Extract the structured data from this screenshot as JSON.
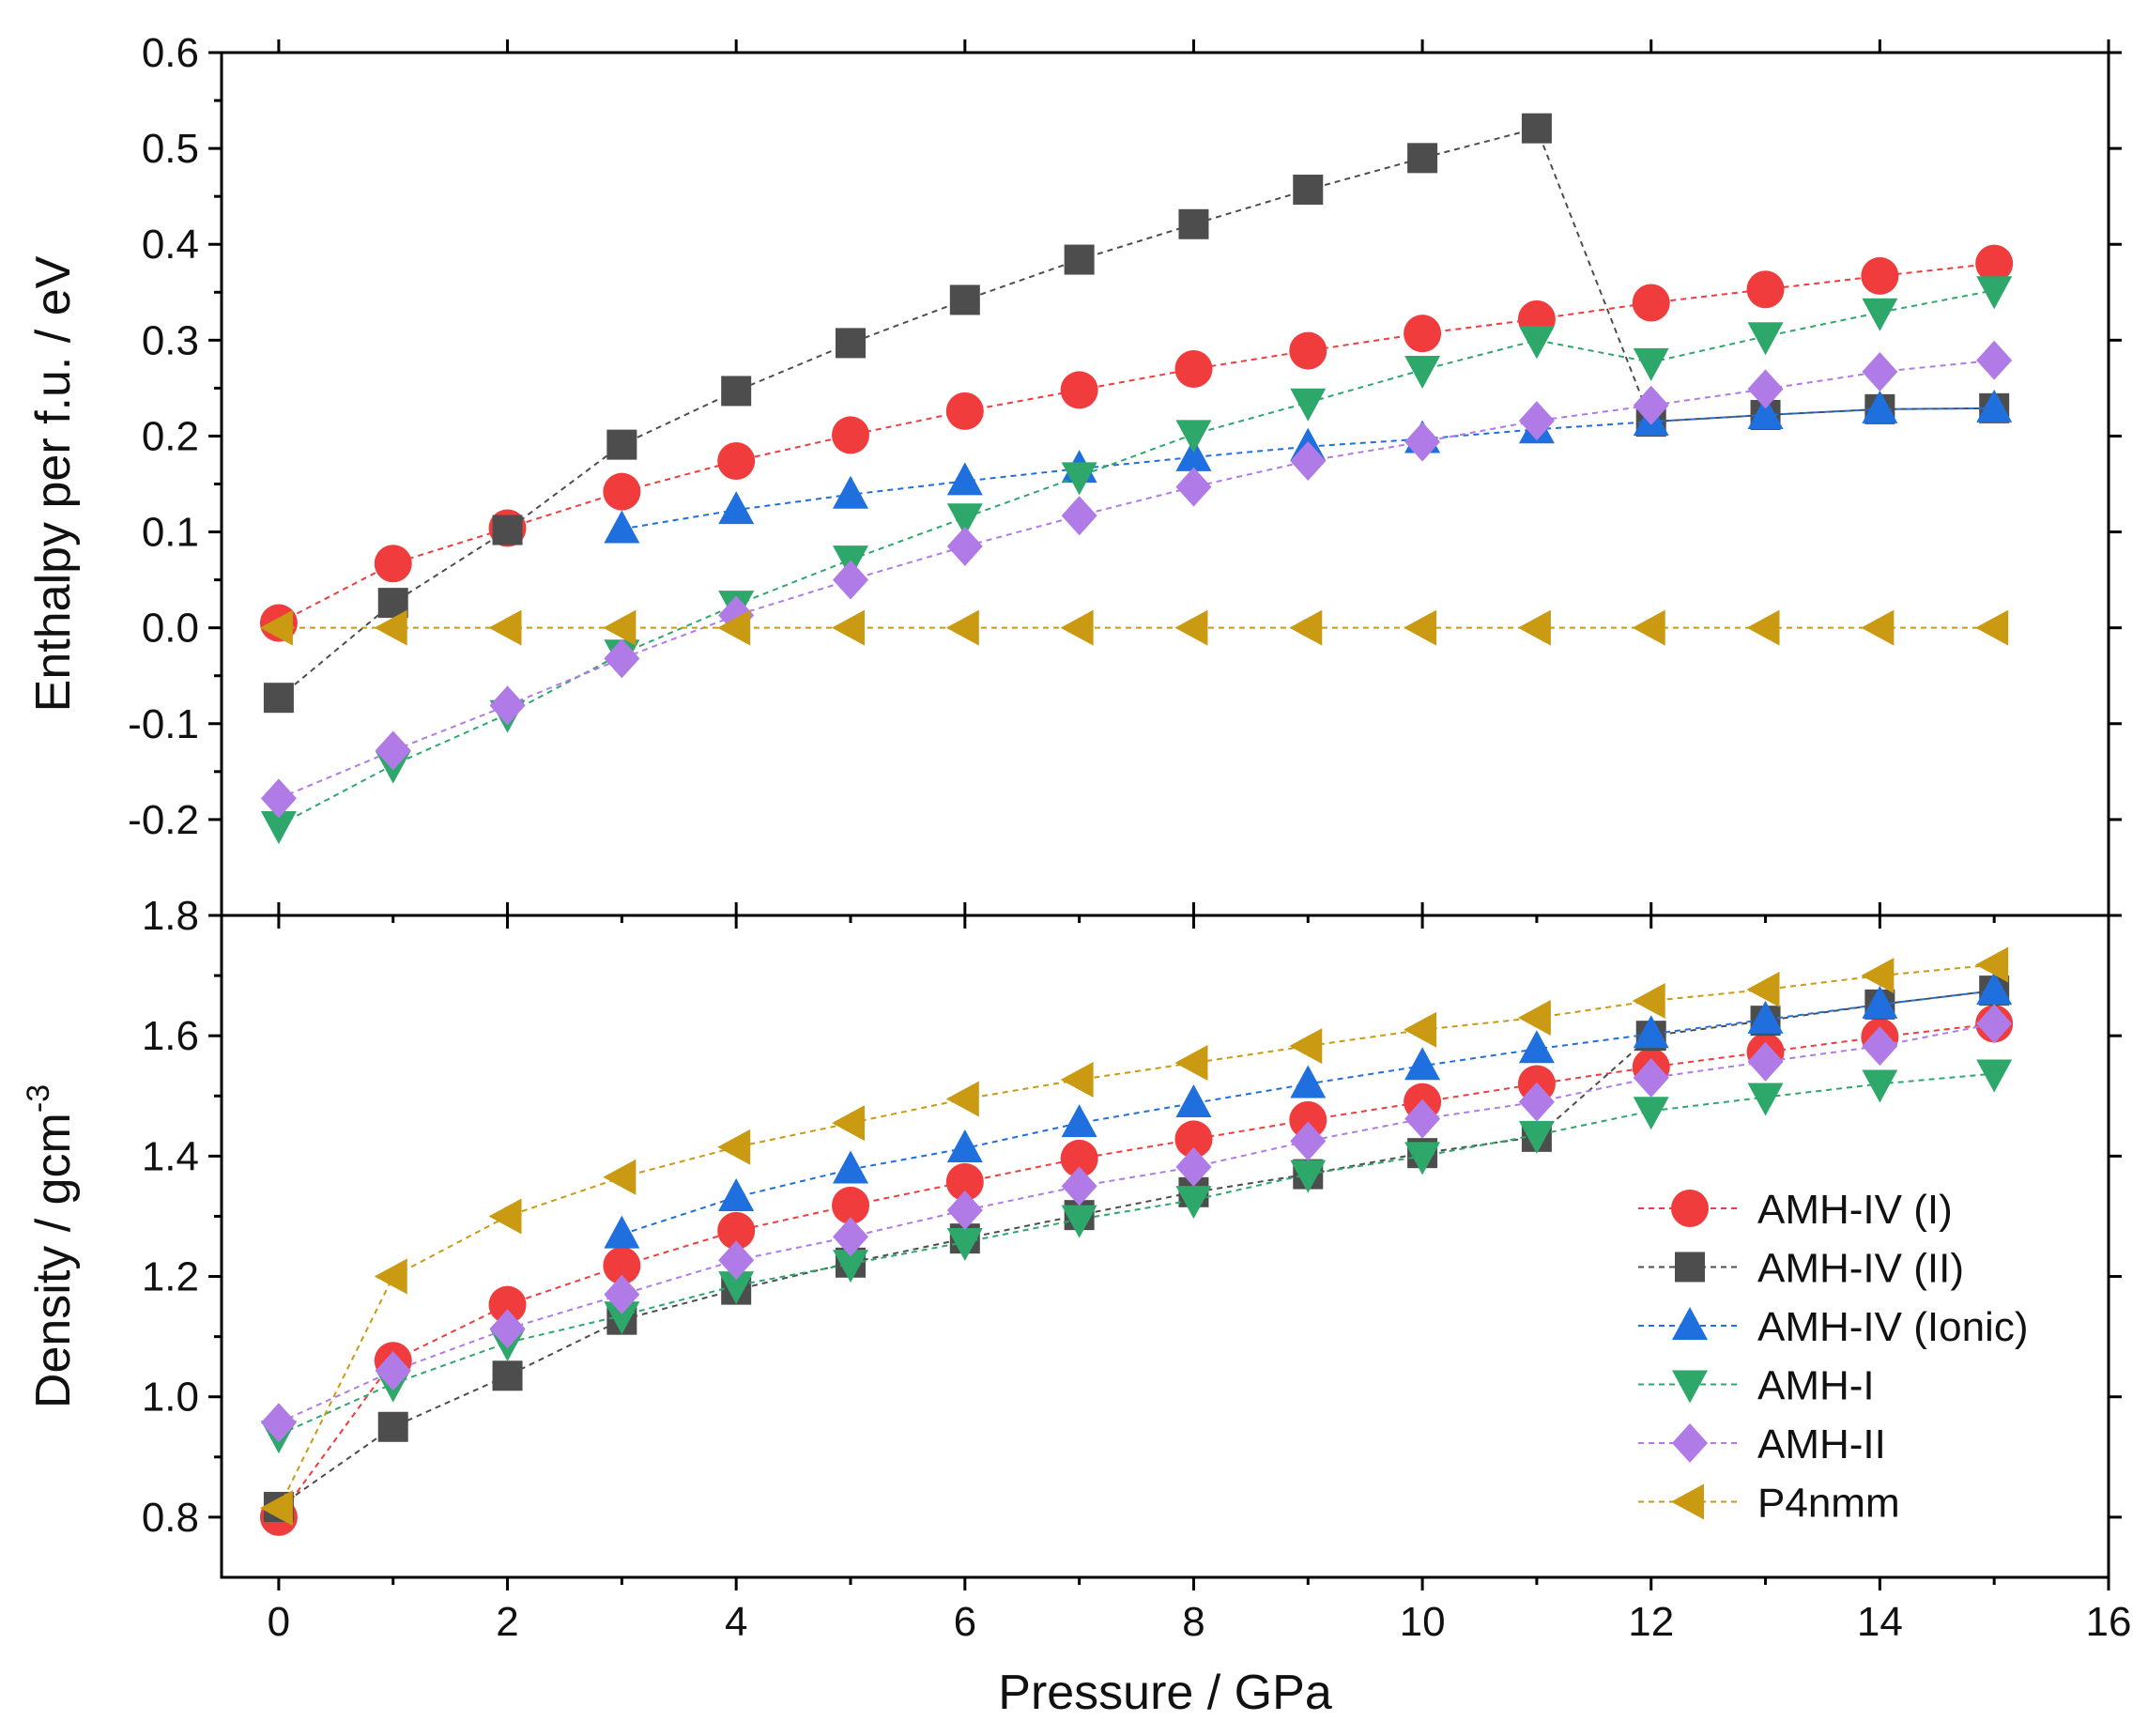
{
  "chart_data": {
    "type": "line",
    "layout": "two vertically stacked panels sharing the x axis",
    "x": [
      0,
      1,
      2,
      3,
      4,
      5,
      6,
      7,
      8,
      9,
      10,
      11,
      12,
      13,
      14,
      15
    ],
    "xlabel": "Pressure / GPa",
    "xlim": [
      -0.5,
      16
    ],
    "xticks": [
      0,
      2,
      4,
      6,
      8,
      10,
      12,
      14,
      16
    ],
    "xtick_labels": [
      "0",
      "2",
      "4",
      "6",
      "8",
      "10",
      "12",
      "14",
      "16"
    ],
    "series_styles": [
      {
        "name": "AMH-IV (I)",
        "color": "#f03c3c",
        "marker": "circle"
      },
      {
        "name": "AMH-IV (II)",
        "color": "#4d4d4d",
        "marker": "square"
      },
      {
        "name": "AMH-IV (Ionic)",
        "color": "#1f6fde",
        "marker": "triangle-up"
      },
      {
        "name": "AMH-I",
        "color": "#2ea86a",
        "marker": "triangle-down"
      },
      {
        "name": "AMH-II",
        "color": "#b07be6",
        "marker": "diamond"
      },
      {
        "name": "P4nmm",
        "color": "#c99a12",
        "marker": "triangle-left"
      }
    ],
    "legend": {
      "placement": "bottom-right of lower panel",
      "entries": [
        "AMH-IV (I)",
        "AMH-IV (II)",
        "AMH-IV (Ionic)",
        "AMH-I",
        "AMH-II",
        "P4nmm"
      ]
    },
    "panels": [
      {
        "name": "enthalpy",
        "ylabel": "Enthalpy per f.u. / eV",
        "ylim": [
          -0.3,
          0.6
        ],
        "yticks": [
          -0.2,
          -0.1,
          0.0,
          0.1,
          0.2,
          0.3,
          0.4,
          0.5,
          0.6
        ],
        "ytick_labels": [
          "-0.2",
          "-0.1",
          "0.0",
          "0.1",
          "0.2",
          "0.3",
          "0.4",
          "0.5",
          "0.6"
        ],
        "series": [
          {
            "name": "AMH-IV (I)",
            "values": [
              0.005,
              0.067,
              0.104,
              0.142,
              0.174,
              0.201,
              0.226,
              0.248,
              0.27,
              0.289,
              0.307,
              0.322,
              0.339,
              0.353,
              0.367,
              0.38
            ]
          },
          {
            "name": "AMH-IV (II)",
            "values": [
              -0.073,
              0.026,
              0.102,
              0.191,
              0.247,
              0.297,
              0.342,
              0.384,
              0.421,
              0.457,
              0.49,
              0.521,
              0.215,
              0.222,
              0.228,
              0.229
            ]
          },
          {
            "name": "AMH-IV (Ionic)",
            "values": [
              null,
              null,
              null,
              0.103,
              0.123,
              0.139,
              0.153,
              0.166,
              0.178,
              0.189,
              0.197,
              0.207,
              0.215,
              0.222,
              0.228,
              0.229
            ]
          },
          {
            "name": "AMH-I",
            "values": [
              -0.206,
              -0.143,
              -0.09,
              -0.027,
              0.024,
              0.071,
              0.115,
              0.158,
              0.202,
              0.235,
              0.269,
              0.3,
              0.277,
              0.304,
              0.329,
              0.352
            ]
          },
          {
            "name": "AMH-II",
            "values": [
              -0.178,
              -0.128,
              -0.081,
              -0.032,
              0.013,
              0.05,
              0.085,
              0.117,
              0.147,
              0.174,
              0.194,
              0.216,
              0.232,
              0.249,
              0.267,
              0.279
            ]
          },
          {
            "name": "P4nmm",
            "values": [
              0,
              0,
              0,
              0,
              0,
              0,
              0,
              0,
              0,
              0,
              0,
              0,
              0,
              0,
              0,
              0
            ]
          }
        ]
      },
      {
        "name": "density",
        "ylabel": "Density / gcm",
        "ylabel_superscript": "-3",
        "ylim": [
          0.7,
          1.8
        ],
        "yticks": [
          0.8,
          1.0,
          1.2,
          1.4,
          1.6,
          1.8
        ],
        "ytick_labels": [
          "0.8",
          "1.0",
          "1.2",
          "1.4",
          "1.6",
          "1.8"
        ],
        "series": [
          {
            "name": "AMH-IV (I)",
            "values": [
              0.8,
              1.06,
              1.153,
              1.218,
              1.276,
              1.318,
              1.357,
              1.396,
              1.428,
              1.46,
              1.49,
              1.52,
              1.548,
              1.573,
              1.598,
              1.62
            ]
          },
          {
            "name": "AMH-IV (II)",
            "values": [
              0.817,
              0.95,
              1.035,
              1.128,
              1.178,
              1.223,
              1.263,
              1.302,
              1.34,
              1.37,
              1.405,
              1.432,
              1.6,
              1.625,
              1.652,
              1.675
            ]
          },
          {
            "name": "AMH-IV (Ionic)",
            "values": [
              null,
              null,
              null,
              1.27,
              1.332,
              1.378,
              1.413,
              1.455,
              1.488,
              1.52,
              1.55,
              1.578,
              1.603,
              1.627,
              1.652,
              1.675
            ]
          },
          {
            "name": "AMH-I",
            "values": [
              0.937,
              1.022,
              1.09,
              1.135,
              1.185,
              1.221,
              1.257,
              1.295,
              1.327,
              1.37,
              1.4,
              1.435,
              1.475,
              1.498,
              1.52,
              1.537
            ]
          },
          {
            "name": "AMH-II",
            "values": [
              0.957,
              1.043,
              1.113,
              1.17,
              1.227,
              1.266,
              1.31,
              1.35,
              1.382,
              1.425,
              1.462,
              1.49,
              1.53,
              1.557,
              1.583,
              1.62
            ]
          },
          {
            "name": "P4nmm",
            "values": [
              0.815,
              1.2,
              1.3,
              1.365,
              1.415,
              1.455,
              1.495,
              1.527,
              1.555,
              1.583,
              1.61,
              1.63,
              1.658,
              1.677,
              1.7,
              1.718
            ]
          }
        ]
      }
    ]
  }
}
